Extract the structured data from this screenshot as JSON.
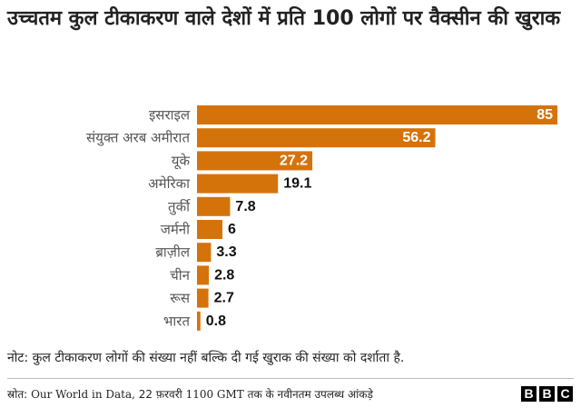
{
  "title": "उच्चतम कुल टीकाकरण वाले देशों में प्रति 100 लोगों पर वैक्सीन की खुराक",
  "note": "नोट: कुल टीकाकरण लोगों की संख्या नहीं बल्कि दी गई खुराक की संख्या को दर्शाता है.",
  "source": {
    "label": "स्रोत:",
    "org": "Our World in Data,",
    "date_num": "22",
    "month": "फ़रवरी",
    "time": "1100 GMT",
    "rest": "तक के नवीनतम उपलब्ध आंकड़े"
  },
  "logo": {
    "letters": [
      "B",
      "B",
      "C"
    ]
  },
  "colors": {
    "bar": "#d5730b",
    "inside_label": "#ffffff",
    "outside_label": "#111111",
    "category_label": "#555555"
  },
  "chart_data": {
    "type": "bar",
    "orientation": "horizontal",
    "title": "उच्चतम कुल टीकाकरण वाले देशों में प्रति 100 लोगों पर वैक्सीन की खुराक",
    "xlabel": "",
    "ylabel": "",
    "xlim": [
      0,
      85
    ],
    "grid": false,
    "categories": [
      "इसराइल",
      "संयुक्त अरब अमीरात",
      "यूके",
      "अमेरिका",
      "तुर्की",
      "जर्मनी",
      "ब्राज़ील",
      "चीन",
      "रूस",
      "भारत"
    ],
    "values": [
      85,
      56.2,
      27.2,
      19.1,
      7.8,
      6,
      3.3,
      2.8,
      2.7,
      0.8
    ],
    "data_labels": [
      "85",
      "56.2",
      "27.2",
      "19.1",
      "7.8",
      "6",
      "3.3",
      "2.8",
      "2.7",
      "0.8"
    ]
  }
}
